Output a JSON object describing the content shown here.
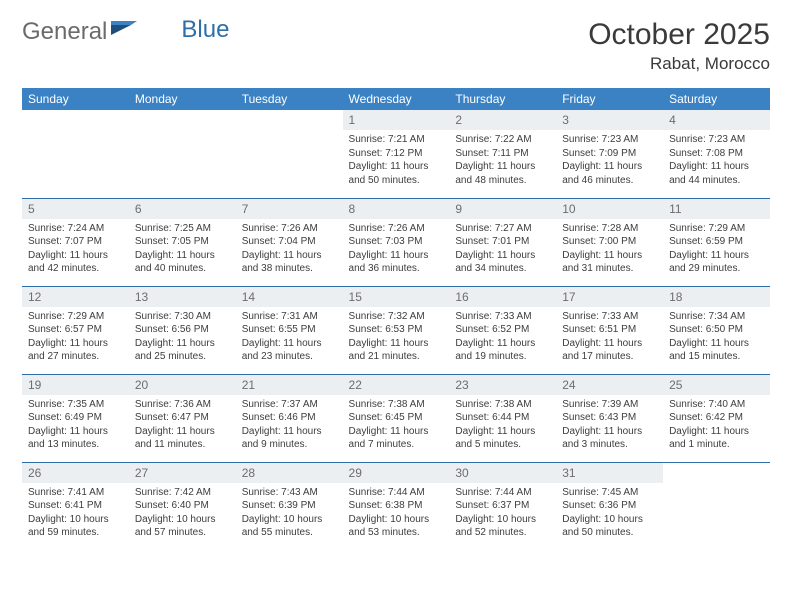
{
  "logo": {
    "text1": "General",
    "text2": "Blue"
  },
  "title": "October 2025",
  "subtitle": "Rabat, Morocco",
  "colors": {
    "header_bg": "#3b82c4",
    "header_text": "#ffffff",
    "daynum_bg": "#eceff1",
    "daynum_text": "#6d6d6d",
    "row_border": "#2f6fa7",
    "body_text": "#3d3d3d",
    "logo_gray": "#6b6b6b",
    "logo_blue": "#2f6fa7"
  },
  "weekdays": [
    "Sunday",
    "Monday",
    "Tuesday",
    "Wednesday",
    "Thursday",
    "Friday",
    "Saturday"
  ],
  "weeks": [
    [
      null,
      null,
      null,
      {
        "n": "1",
        "sr": "7:21 AM",
        "ss": "7:12 PM",
        "dl": "11 hours and 50 minutes."
      },
      {
        "n": "2",
        "sr": "7:22 AM",
        "ss": "7:11 PM",
        "dl": "11 hours and 48 minutes."
      },
      {
        "n": "3",
        "sr": "7:23 AM",
        "ss": "7:09 PM",
        "dl": "11 hours and 46 minutes."
      },
      {
        "n": "4",
        "sr": "7:23 AM",
        "ss": "7:08 PM",
        "dl": "11 hours and 44 minutes."
      }
    ],
    [
      {
        "n": "5",
        "sr": "7:24 AM",
        "ss": "7:07 PM",
        "dl": "11 hours and 42 minutes."
      },
      {
        "n": "6",
        "sr": "7:25 AM",
        "ss": "7:05 PM",
        "dl": "11 hours and 40 minutes."
      },
      {
        "n": "7",
        "sr": "7:26 AM",
        "ss": "7:04 PM",
        "dl": "11 hours and 38 minutes."
      },
      {
        "n": "8",
        "sr": "7:26 AM",
        "ss": "7:03 PM",
        "dl": "11 hours and 36 minutes."
      },
      {
        "n": "9",
        "sr": "7:27 AM",
        "ss": "7:01 PM",
        "dl": "11 hours and 34 minutes."
      },
      {
        "n": "10",
        "sr": "7:28 AM",
        "ss": "7:00 PM",
        "dl": "11 hours and 31 minutes."
      },
      {
        "n": "11",
        "sr": "7:29 AM",
        "ss": "6:59 PM",
        "dl": "11 hours and 29 minutes."
      }
    ],
    [
      {
        "n": "12",
        "sr": "7:29 AM",
        "ss": "6:57 PM",
        "dl": "11 hours and 27 minutes."
      },
      {
        "n": "13",
        "sr": "7:30 AM",
        "ss": "6:56 PM",
        "dl": "11 hours and 25 minutes."
      },
      {
        "n": "14",
        "sr": "7:31 AM",
        "ss": "6:55 PM",
        "dl": "11 hours and 23 minutes."
      },
      {
        "n": "15",
        "sr": "7:32 AM",
        "ss": "6:53 PM",
        "dl": "11 hours and 21 minutes."
      },
      {
        "n": "16",
        "sr": "7:33 AM",
        "ss": "6:52 PM",
        "dl": "11 hours and 19 minutes."
      },
      {
        "n": "17",
        "sr": "7:33 AM",
        "ss": "6:51 PM",
        "dl": "11 hours and 17 minutes."
      },
      {
        "n": "18",
        "sr": "7:34 AM",
        "ss": "6:50 PM",
        "dl": "11 hours and 15 minutes."
      }
    ],
    [
      {
        "n": "19",
        "sr": "7:35 AM",
        "ss": "6:49 PM",
        "dl": "11 hours and 13 minutes."
      },
      {
        "n": "20",
        "sr": "7:36 AM",
        "ss": "6:47 PM",
        "dl": "11 hours and 11 minutes."
      },
      {
        "n": "21",
        "sr": "7:37 AM",
        "ss": "6:46 PM",
        "dl": "11 hours and 9 minutes."
      },
      {
        "n": "22",
        "sr": "7:38 AM",
        "ss": "6:45 PM",
        "dl": "11 hours and 7 minutes."
      },
      {
        "n": "23",
        "sr": "7:38 AM",
        "ss": "6:44 PM",
        "dl": "11 hours and 5 minutes."
      },
      {
        "n": "24",
        "sr": "7:39 AM",
        "ss": "6:43 PM",
        "dl": "11 hours and 3 minutes."
      },
      {
        "n": "25",
        "sr": "7:40 AM",
        "ss": "6:42 PM",
        "dl": "11 hours and 1 minute."
      }
    ],
    [
      {
        "n": "26",
        "sr": "7:41 AM",
        "ss": "6:41 PM",
        "dl": "10 hours and 59 minutes."
      },
      {
        "n": "27",
        "sr": "7:42 AM",
        "ss": "6:40 PM",
        "dl": "10 hours and 57 minutes."
      },
      {
        "n": "28",
        "sr": "7:43 AM",
        "ss": "6:39 PM",
        "dl": "10 hours and 55 minutes."
      },
      {
        "n": "29",
        "sr": "7:44 AM",
        "ss": "6:38 PM",
        "dl": "10 hours and 53 minutes."
      },
      {
        "n": "30",
        "sr": "7:44 AM",
        "ss": "6:37 PM",
        "dl": "10 hours and 52 minutes."
      },
      {
        "n": "31",
        "sr": "7:45 AM",
        "ss": "6:36 PM",
        "dl": "10 hours and 50 minutes."
      },
      null
    ]
  ],
  "labels": {
    "sunrise": "Sunrise:",
    "sunset": "Sunset:",
    "daylight": "Daylight:"
  }
}
